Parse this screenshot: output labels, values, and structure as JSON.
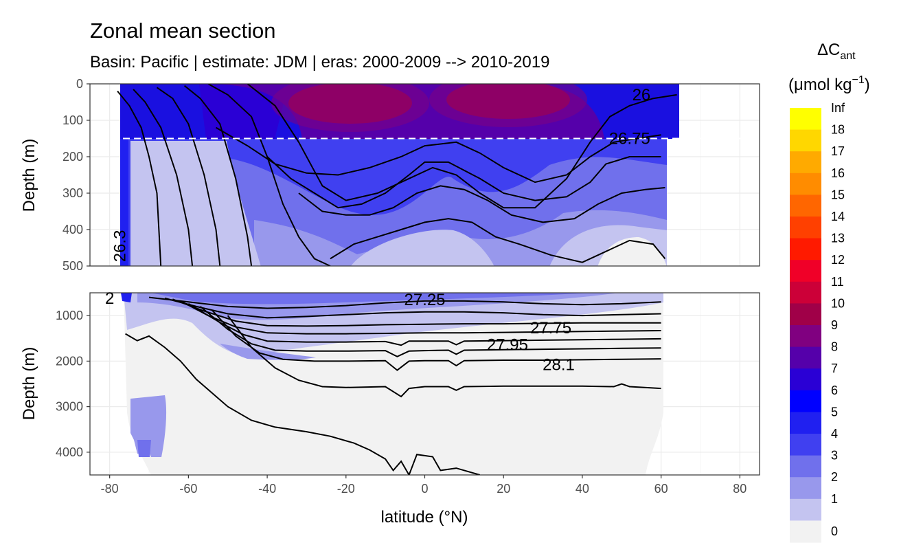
{
  "chart_data": {
    "type": "heatmap",
    "title": "Zonal mean section",
    "subtitle": "Basin: Pacific | estimate: JDM  | eras: 2000-2009 --> 2010-2019",
    "xlabel": "latitude (°N)",
    "ylabel_top": "Depth (m)",
    "ylabel_bottom": "Depth (m)",
    "x_ticks": [
      "-80",
      "-60",
      "-40",
      "-20",
      "0",
      "20",
      "40",
      "60",
      "80"
    ],
    "x_range": [
      -85,
      85
    ],
    "panels": [
      {
        "name": "upper",
        "depth_range": [
          0,
          500
        ],
        "depth_ticks": [
          "0",
          "100",
          "200",
          "300",
          "400",
          "500"
        ],
        "reference_line_depth": 150
      },
      {
        "name": "lower",
        "depth_range": [
          500,
          4500
        ],
        "depth_ticks": [
          "1000",
          "2000",
          "3000",
          "4000"
        ]
      }
    ],
    "legend": {
      "title_main": "ΔC",
      "title_sub": "ant",
      "unit_main": "(μmol kg",
      "unit_sup": "−1",
      "unit_close": ")",
      "labels": [
        "Inf",
        "18",
        "17",
        "16",
        "15",
        "14",
        "13",
        "12",
        "11",
        "10",
        "9",
        "8",
        "7",
        "6",
        "5",
        "4",
        "3",
        "2",
        "1",
        "0"
      ],
      "colors": [
        "#ffff00",
        "#ffd700",
        "#ffaa00",
        "#ff8c00",
        "#ff6600",
        "#ff4000",
        "#ff1a00",
        "#f00028",
        "#cc0038",
        "#a00048",
        "#800080",
        "#5500aa",
        "#2a00d5",
        "#0000ff",
        "#2020f0",
        "#4040f0",
        "#7070ec",
        "#9898ec",
        "#c4c4f0",
        "#f2f2f2"
      ]
    },
    "contour_labels": [
      {
        "text": "26",
        "lat": 55,
        "depth": 30
      },
      {
        "text": "26.75",
        "lat": 52,
        "depth": 150
      },
      {
        "text": "26.3",
        "lat": -76,
        "depth": 430
      },
      {
        "text": "27.25",
        "lat": 0,
        "depth": 650
      },
      {
        "text": "27.75",
        "lat": 32,
        "depth": 1270
      },
      {
        "text": "27.95",
        "lat": 21,
        "depth": 1640
      },
      {
        "text": "28.1",
        "lat": 34,
        "depth": 2080
      },
      {
        "text": "2",
        "lat": -80,
        "depth": 620
      }
    ],
    "contours_upper": [
      {
        "name": "26",
        "points": [
          [
            -78,
            20
          ],
          [
            -75,
            60
          ],
          [
            -72,
            120
          ],
          [
            -70,
            200
          ],
          [
            -68,
            300
          ],
          [
            -67,
            500
          ]
        ]
      },
      {
        "name": "26.1",
        "points": [
          [
            -74,
            15
          ],
          [
            -71,
            50
          ],
          [
            -67,
            120
          ],
          [
            -63,
            250
          ],
          [
            -60,
            400
          ],
          [
            -59,
            500
          ]
        ]
      },
      {
        "name": "26.2",
        "points": [
          [
            -68,
            10
          ],
          [
            -64,
            40
          ],
          [
            -60,
            110
          ],
          [
            -56,
            250
          ],
          [
            -53,
            400
          ],
          [
            -52,
            500
          ]
        ]
      },
      {
        "name": "26.3",
        "points": [
          [
            -61,
            5
          ],
          [
            -57,
            40
          ],
          [
            -52,
            110
          ],
          [
            -48,
            260
          ],
          [
            -45,
            420
          ],
          [
            -44,
            500
          ]
        ]
      },
      {
        "name": "26.4",
        "points": [
          [
            -55,
            0
          ],
          [
            -50,
            30
          ],
          [
            -44,
            90
          ],
          [
            -40,
            200
          ],
          [
            -36,
            330
          ],
          [
            -32,
            420
          ],
          [
            -28,
            480
          ],
          [
            -24,
            500
          ]
        ]
      },
      {
        "name": "26.5",
        "points": [
          [
            -45,
            0
          ],
          [
            -38,
            60
          ],
          [
            -32,
            160
          ],
          [
            -26,
            280
          ],
          [
            -20,
            320
          ],
          [
            -12,
            300
          ],
          [
            -4,
            260
          ],
          [
            2,
            230
          ],
          [
            8,
            250
          ],
          [
            14,
            300
          ],
          [
            20,
            340
          ],
          [
            28,
            340
          ],
          [
            36,
            260
          ],
          [
            42,
            160
          ],
          [
            47,
            90
          ],
          [
            52,
            60
          ],
          [
            58,
            40
          ],
          [
            64,
            30
          ]
        ]
      },
      {
        "name": "26.75",
        "points": [
          [
            -53,
            120
          ],
          [
            -45,
            170
          ],
          [
            -38,
            220
          ],
          [
            -30,
            245
          ],
          [
            -22,
            250
          ],
          [
            -14,
            230
          ],
          [
            -6,
            200
          ],
          [
            0,
            170
          ],
          [
            8,
            160
          ],
          [
            14,
            190
          ],
          [
            20,
            230
          ],
          [
            28,
            270
          ],
          [
            36,
            250
          ],
          [
            42,
            200
          ],
          [
            48,
            160
          ],
          [
            54,
            150
          ],
          [
            60,
            140
          ]
        ]
      },
      {
        "name": "26.9",
        "points": [
          [
            -40,
            200
          ],
          [
            -34,
            260
          ],
          [
            -28,
            300
          ],
          [
            -22,
            340
          ],
          [
            -16,
            330
          ],
          [
            -10,
            300
          ],
          [
            -4,
            250
          ],
          [
            0,
            215
          ],
          [
            6,
            215
          ],
          [
            14,
            260
          ],
          [
            20,
            300
          ],
          [
            28,
            320
          ],
          [
            36,
            310
          ],
          [
            42,
            270
          ],
          [
            46,
            220
          ],
          [
            52,
            200
          ],
          [
            60,
            200
          ]
        ]
      },
      {
        "name": "27.0",
        "points": [
          [
            -32,
            300
          ],
          [
            -26,
            350
          ],
          [
            -20,
            360
          ],
          [
            -14,
            360
          ],
          [
            -8,
            340
          ],
          [
            -2,
            300
          ],
          [
            4,
            280
          ],
          [
            10,
            290
          ],
          [
            16,
            320
          ],
          [
            22,
            360
          ],
          [
            30,
            380
          ],
          [
            38,
            370
          ],
          [
            44,
            330
          ],
          [
            50,
            300
          ],
          [
            56,
            290
          ],
          [
            61,
            285
          ]
        ]
      },
      {
        "name": "27.1",
        "points": [
          [
            -24,
            480
          ],
          [
            -18,
            440
          ],
          [
            -12,
            420
          ],
          [
            -6,
            400
          ],
          [
            0,
            380
          ],
          [
            6,
            370
          ],
          [
            12,
            380
          ],
          [
            18,
            420
          ],
          [
            24,
            440
          ],
          [
            32,
            470
          ],
          [
            40,
            490
          ],
          [
            46,
            460
          ],
          [
            52,
            430
          ],
          [
            58,
            440
          ],
          [
            61,
            480
          ]
        ]
      }
    ],
    "contours_lower": [
      {
        "name": "27.25",
        "points": [
          [
            -70,
            600
          ],
          [
            -60,
            700
          ],
          [
            -50,
            800
          ],
          [
            -40,
            840
          ],
          [
            -30,
            820
          ],
          [
            -20,
            780
          ],
          [
            -10,
            720
          ],
          [
            0,
            680
          ],
          [
            10,
            680
          ],
          [
            20,
            700
          ],
          [
            30,
            740
          ],
          [
            40,
            760
          ],
          [
            50,
            740
          ],
          [
            60,
            700
          ]
        ]
      },
      {
        "name": "27.4",
        "points": [
          [
            -66,
            620
          ],
          [
            -58,
            800
          ],
          [
            -50,
            960
          ],
          [
            -40,
            1050
          ],
          [
            -30,
            1020
          ],
          [
            -20,
            980
          ],
          [
            -10,
            940
          ],
          [
            0,
            920
          ],
          [
            10,
            920
          ],
          [
            20,
            940
          ],
          [
            30,
            980
          ],
          [
            40,
            1000
          ],
          [
            50,
            980
          ],
          [
            60,
            960
          ]
        ]
      },
      {
        "name": "27.6",
        "points": [
          [
            -64,
            640
          ],
          [
            -56,
            900
          ],
          [
            -48,
            1120
          ],
          [
            -40,
            1220
          ],
          [
            -30,
            1230
          ],
          [
            -20,
            1220
          ],
          [
            -10,
            1200
          ],
          [
            0,
            1190
          ],
          [
            10,
            1180
          ],
          [
            20,
            1180
          ],
          [
            30,
            1170
          ],
          [
            40,
            1160
          ],
          [
            50,
            1160
          ],
          [
            60,
            1160
          ]
        ]
      },
      {
        "name": "27.75",
        "points": [
          [
            -62,
            680
          ],
          [
            -55,
            1000
          ],
          [
            -48,
            1250
          ],
          [
            -40,
            1380
          ],
          [
            -30,
            1400
          ],
          [
            -20,
            1400
          ],
          [
            -10,
            1390
          ],
          [
            0,
            1380
          ],
          [
            10,
            1380
          ],
          [
            20,
            1370
          ],
          [
            30,
            1360
          ],
          [
            40,
            1350
          ],
          [
            50,
            1340
          ],
          [
            60,
            1330
          ]
        ]
      },
      {
        "name": "27.85",
        "points": [
          [
            -60,
            740
          ],
          [
            -52,
            1150
          ],
          [
            -46,
            1420
          ],
          [
            -40,
            1560
          ],
          [
            -30,
            1580
          ],
          [
            -20,
            1580
          ],
          [
            -10,
            1570
          ],
          [
            -6,
            1650
          ],
          [
            -4,
            1560
          ],
          [
            0,
            1560
          ],
          [
            6,
            1560
          ],
          [
            8,
            1640
          ],
          [
            10,
            1560
          ],
          [
            20,
            1550
          ],
          [
            30,
            1540
          ],
          [
            40,
            1530
          ],
          [
            50,
            1520
          ],
          [
            60,
            1510
          ]
        ]
      },
      {
        "name": "27.95",
        "points": [
          [
            -57,
            800
          ],
          [
            -50,
            1300
          ],
          [
            -44,
            1620
          ],
          [
            -38,
            1760
          ],
          [
            -30,
            1780
          ],
          [
            -20,
            1780
          ],
          [
            -10,
            1770
          ],
          [
            -7,
            1900
          ],
          [
            -4,
            1780
          ],
          [
            0,
            1770
          ],
          [
            6,
            1760
          ],
          [
            8,
            1850
          ],
          [
            10,
            1760
          ],
          [
            20,
            1750
          ],
          [
            30,
            1740
          ],
          [
            40,
            1730
          ],
          [
            50,
            1720
          ],
          [
            60,
            1710
          ]
        ]
      },
      {
        "name": "28.0",
        "points": [
          [
            -54,
            880
          ],
          [
            -48,
            1450
          ],
          [
            -42,
            1820
          ],
          [
            -36,
            1960
          ],
          [
            -28,
            2000
          ],
          [
            -20,
            2000
          ],
          [
            -10,
            1990
          ],
          [
            -7,
            2200
          ],
          [
            -4,
            2000
          ],
          [
            0,
            1990
          ],
          [
            6,
            1990
          ],
          [
            8,
            2100
          ],
          [
            10,
            1990
          ],
          [
            20,
            1980
          ],
          [
            30,
            1980
          ],
          [
            40,
            1970
          ],
          [
            50,
            1960
          ],
          [
            60,
            1950
          ]
        ]
      },
      {
        "name": "28.1",
        "points": [
          [
            -50,
            1000
          ],
          [
            -44,
            1700
          ],
          [
            -38,
            2150
          ],
          [
            -32,
            2420
          ],
          [
            -26,
            2560
          ],
          [
            -20,
            2580
          ],
          [
            -10,
            2560
          ],
          [
            -6,
            2780
          ],
          [
            -4,
            2600
          ],
          [
            0,
            2560
          ],
          [
            6,
            2560
          ],
          [
            8,
            2640
          ],
          [
            10,
            2560
          ],
          [
            20,
            2550
          ],
          [
            30,
            2550
          ],
          [
            40,
            2550
          ],
          [
            48,
            2560
          ],
          [
            50,
            2500
          ],
          [
            52,
            2560
          ],
          [
            60,
            2600
          ]
        ]
      },
      {
        "name": "28.2",
        "points": [
          [
            -76,
            1400
          ],
          [
            -73,
            1550
          ],
          [
            -70,
            1450
          ],
          [
            -66,
            1700
          ],
          [
            -62,
            2000
          ],
          [
            -58,
            2400
          ],
          [
            -54,
            2700
          ],
          [
            -50,
            3000
          ],
          [
            -44,
            3300
          ],
          [
            -38,
            3450
          ],
          [
            -30,
            3550
          ],
          [
            -24,
            3650
          ],
          [
            -18,
            3800
          ],
          [
            -14,
            3950
          ],
          [
            -10,
            4150
          ],
          [
            -8,
            4400
          ],
          [
            -6,
            4200
          ],
          [
            -4,
            4500
          ],
          [
            -2,
            4050
          ],
          [
            2,
            4100
          ],
          [
            4,
            4400
          ],
          [
            8,
            4350
          ],
          [
            14,
            4500
          ]
        ]
      }
    ]
  }
}
